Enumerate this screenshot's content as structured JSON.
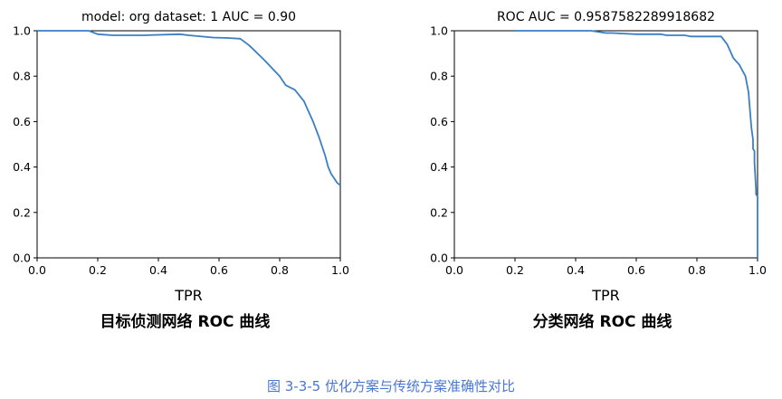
{
  "chart_data": [
    {
      "type": "line",
      "title": "model: org dataset: 1 AUC = 0.90",
      "xlabel": "TPR",
      "caption": "目标侦测网络 ROC 曲线",
      "xlim": [
        0,
        1
      ],
      "ylim": [
        0,
        1
      ],
      "xticks": [
        "0.0",
        "0.2",
        "0.4",
        "0.6",
        "0.8",
        "1.0"
      ],
      "yticks": [
        "0.0",
        "0.2",
        "0.4",
        "0.6",
        "0.8",
        "1.0"
      ],
      "color": "#3a7fc4",
      "x": [
        0,
        0.17,
        0.2,
        0.25,
        0.35,
        0.47,
        0.5,
        0.58,
        0.63,
        0.67,
        0.7,
        0.75,
        0.8,
        0.82,
        0.85,
        0.88,
        0.91,
        0.93,
        0.95,
        0.96,
        0.97,
        0.98,
        0.99,
        1.0
      ],
      "y": [
        1.0,
        1.0,
        0.985,
        0.98,
        0.98,
        0.985,
        0.98,
        0.97,
        0.968,
        0.965,
        0.935,
        0.87,
        0.8,
        0.76,
        0.74,
        0.69,
        0.6,
        0.53,
        0.45,
        0.4,
        0.37,
        0.35,
        0.33,
        0.32
      ]
    },
    {
      "type": "line",
      "title": "ROC AUC = 0.9587582289918682",
      "xlabel": "TPR",
      "caption": "分类网络 ROC 曲线",
      "xlim": [
        0,
        1
      ],
      "ylim": [
        0,
        1
      ],
      "xticks": [
        "0.0",
        "0.2",
        "0.4",
        "0.6",
        "0.8",
        "1.0"
      ],
      "yticks": [
        "0.0",
        "0.2",
        "0.4",
        "0.6",
        "0.8",
        "1.0"
      ],
      "color": "#3a7fc4",
      "x": [
        0.2,
        0.45,
        0.5,
        0.52,
        0.6,
        0.68,
        0.7,
        0.76,
        0.78,
        0.88,
        0.9,
        0.92,
        0.94,
        0.96,
        0.97,
        0.975,
        0.98,
        0.985,
        0.985,
        0.99,
        0.99,
        0.995,
        0.995,
        1.0,
        1.0
      ],
      "y": [
        1.0,
        1.0,
        0.99,
        0.99,
        0.985,
        0.985,
        0.98,
        0.98,
        0.975,
        0.975,
        0.94,
        0.88,
        0.85,
        0.8,
        0.73,
        0.65,
        0.57,
        0.52,
        0.48,
        0.47,
        0.42,
        0.3,
        0.28,
        0.27,
        0.0
      ]
    }
  ],
  "figure_caption": "图 3-3-5 优化方案与传统方案准确性对比"
}
